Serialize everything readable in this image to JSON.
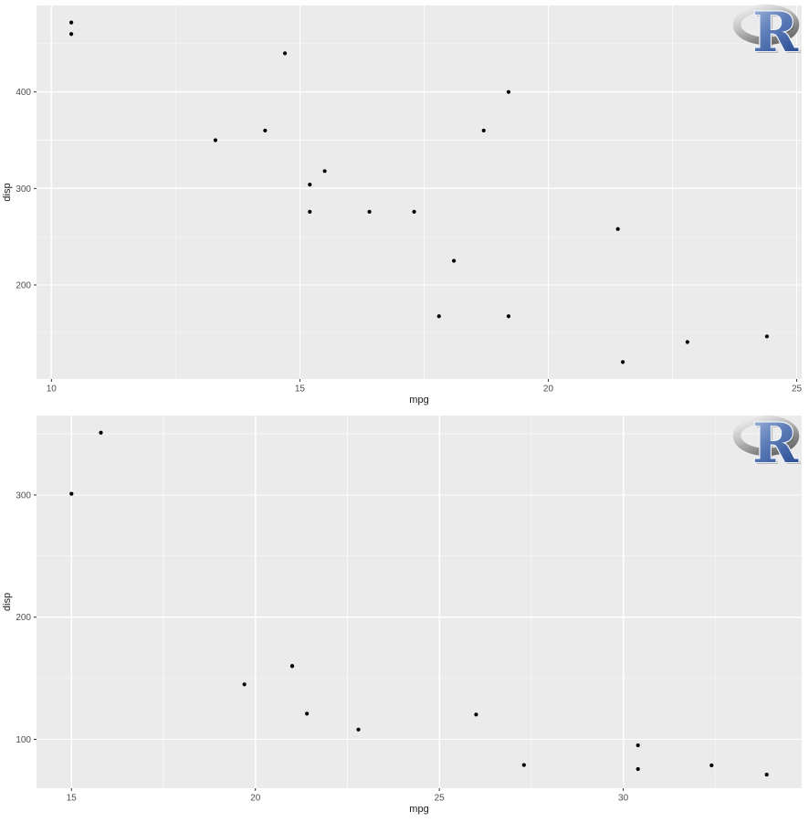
{
  "page": {
    "background": "#ffffff",
    "description": "Two stacked scatter plots of disp vs mpg (R ggplot2 style) with R logo watermark"
  },
  "colors": {
    "panel_background": "#ebebeb",
    "grid_major": "#ffffff",
    "grid_minor": "#f7f7f7",
    "point": "#000000",
    "tick_label": "#4d4d4d",
    "axis_title": "#1a1a1a",
    "tick_mark": "#333333",
    "logo_ring_light": "#f5f5f5",
    "logo_ring_mid": "#bfbfbf",
    "logo_ring_dark": "#6e6e6e",
    "logo_r_light": "#aabedf",
    "logo_r_mid": "#5c7cb8",
    "logo_r_dark": "#2d4f94"
  },
  "r_logo": {
    "letter": "R"
  },
  "chart_data": [
    {
      "type": "scatter",
      "title": "",
      "xlabel": "mpg",
      "ylabel": "disp",
      "xlim": [
        9.7,
        25.1
      ],
      "ylim": [
        102.5,
        489.6
      ],
      "x_ticks": [
        10,
        15,
        20,
        25
      ],
      "x_minor_ticks": [
        12.5,
        17.5,
        22.5
      ],
      "y_ticks": [
        200,
        300,
        400
      ],
      "y_minor_ticks": [
        150,
        250,
        350,
        450
      ],
      "grid": true,
      "legend": "none",
      "points": [
        [
          10.4,
          472
        ],
        [
          10.4,
          460
        ],
        [
          13.3,
          350
        ],
        [
          14.3,
          360
        ],
        [
          14.7,
          440
        ],
        [
          15.2,
          304
        ],
        [
          15.2,
          275.8
        ],
        [
          15.5,
          318
        ],
        [
          16.4,
          275.8
        ],
        [
          17.3,
          275.8
        ],
        [
          17.8,
          167.6
        ],
        [
          18.1,
          225
        ],
        [
          18.7,
          360
        ],
        [
          19.2,
          400
        ],
        [
          19.2,
          167.6
        ],
        [
          21.4,
          258
        ],
        [
          21.5,
          120.1
        ],
        [
          22.8,
          140.8
        ],
        [
          24.4,
          146.7
        ]
      ]
    },
    {
      "type": "scatter",
      "title": "",
      "xlabel": "mpg",
      "ylabel": "disp",
      "xlim": [
        14.05,
        34.85
      ],
      "ylim": [
        60,
        365
      ],
      "x_ticks": [
        15,
        20,
        25,
        30
      ],
      "x_minor_ticks": [
        17.5,
        22.5,
        27.5,
        32.5
      ],
      "y_ticks": [
        100,
        200,
        300
      ],
      "y_minor_ticks": [
        150,
        250,
        350
      ],
      "grid": true,
      "legend": "none",
      "points": [
        [
          15.0,
          301
        ],
        [
          15.8,
          351
        ],
        [
          19.7,
          145
        ],
        [
          21.0,
          160
        ],
        [
          21.0,
          160
        ],
        [
          21.4,
          121
        ],
        [
          22.8,
          108
        ],
        [
          26.0,
          120.3
        ],
        [
          27.3,
          79
        ],
        [
          30.4,
          95.1
        ],
        [
          30.4,
          75.7
        ],
        [
          32.4,
          78.7
        ],
        [
          33.9,
          71.1
        ]
      ]
    }
  ]
}
